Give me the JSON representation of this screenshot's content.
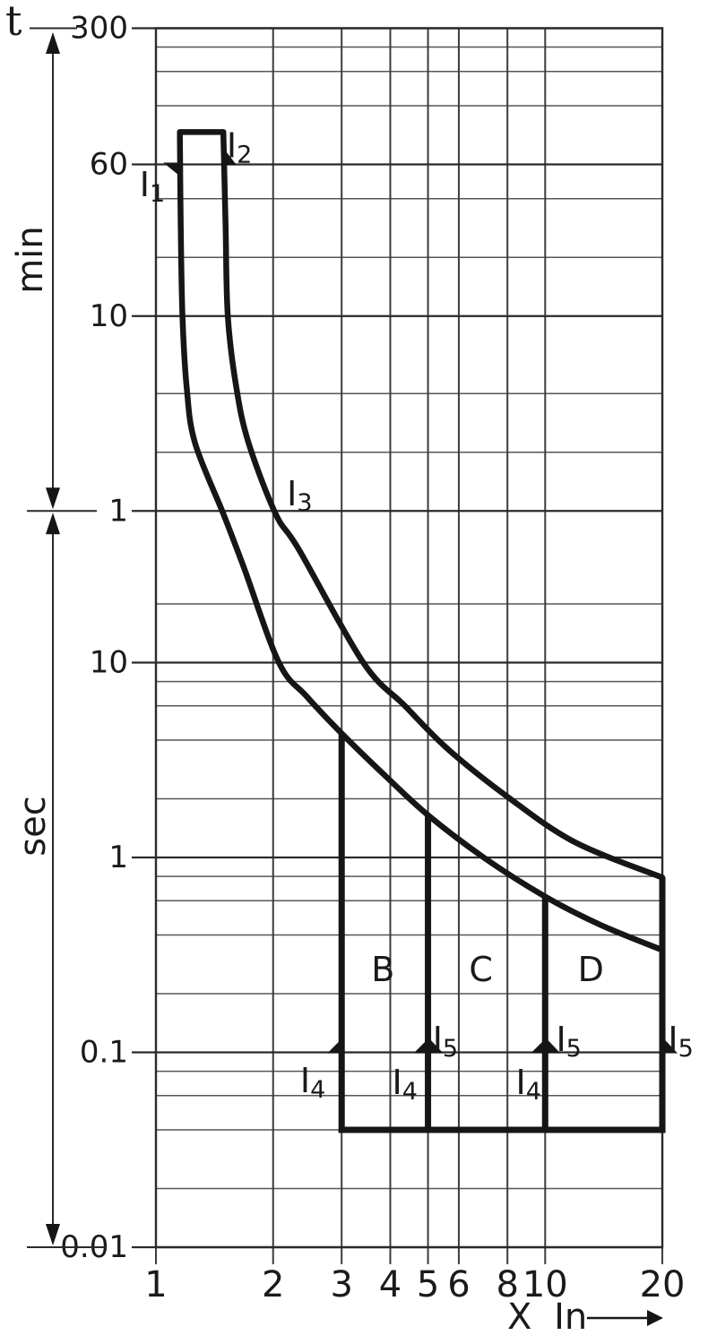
{
  "chart_data": {
    "type": "line",
    "x_axis": {
      "title": "X In",
      "scale": "log",
      "range": [
        1,
        20
      ],
      "ticks": [
        {
          "v": 1,
          "label": "1"
        },
        {
          "v": 2,
          "label": "2"
        },
        {
          "v": 3,
          "label": "3"
        },
        {
          "v": 4,
          "label": "4"
        },
        {
          "v": 5,
          "label": "5"
        },
        {
          "v": 6,
          "label": "6"
        },
        {
          "v": 8,
          "label": "8"
        },
        {
          "v": 10,
          "label": "10"
        },
        {
          "v": 20,
          "label": "20"
        }
      ]
    },
    "y_axis": {
      "title": "t",
      "unit_upper": "min",
      "unit_lower": "sec",
      "scale": "log",
      "range_s": [
        0.01,
        18000
      ],
      "ticks": [
        {
          "t_s": 18000,
          "label": "300"
        },
        {
          "t_s": 3600,
          "label": "60"
        },
        {
          "t_s": 600,
          "label": "10"
        },
        {
          "t_s": 60,
          "label": "1"
        },
        {
          "t_s": 10,
          "label": "10"
        },
        {
          "t_s": 1,
          "label": "1"
        },
        {
          "t_s": 0.1,
          "label": "0.1"
        },
        {
          "t_s": 0.01,
          "label": "0.01"
        }
      ],
      "minor_gridlines_s": [
        14400,
        10800,
        7200,
        2400,
        1200,
        240,
        120,
        20,
        8,
        6,
        4,
        2,
        0.8,
        0.6,
        0.4,
        0.2,
        0.08,
        0.06,
        0.04,
        0.02
      ]
    },
    "series": [
      {
        "name": "thermal-trip-lower-boundary",
        "points_v_t": [
          [
            1.152,
            5280
          ],
          [
            1.158,
            1730
          ],
          [
            1.17,
            597
          ],
          [
            1.2,
            256
          ],
          [
            1.26,
            134
          ],
          [
            1.49,
            58
          ],
          [
            1.68,
            31
          ],
          [
            2.07,
            10
          ],
          [
            2.44,
            6.7
          ],
          [
            3.0,
            4.33
          ],
          [
            3.95,
            2.54
          ],
          [
            5.0,
            1.65
          ],
          [
            6.95,
            1.0
          ],
          [
            10.0,
            0.63
          ],
          [
            13.9,
            0.45
          ],
          [
            20.0,
            0.335
          ]
        ]
      },
      {
        "name": "thermal-trip-upper-boundary",
        "points_v_t": [
          [
            1.49,
            5280
          ],
          [
            1.51,
            1730
          ],
          [
            1.53,
            597
          ],
          [
            1.61,
            256
          ],
          [
            1.73,
            134
          ],
          [
            2.03,
            58
          ],
          [
            2.33,
            38
          ],
          [
            3.41,
            10
          ],
          [
            4.36,
            6.0
          ],
          [
            5.64,
            3.58
          ],
          [
            8.0,
            2.05
          ],
          [
            11.9,
            1.2
          ],
          [
            20.0,
            0.789
          ]
        ]
      }
    ],
    "magnetic_trip": {
      "cap": {
        "t_s": 5280,
        "v_from": 1.152,
        "v_to": 1.49
      },
      "floor": {
        "t_s": 0.04,
        "v_from": 3,
        "v_to": 20
      },
      "verticals": [
        {
          "v": 3,
          "t_top_s": 4.33
        },
        {
          "v": 5,
          "t_top_s": 1.65
        },
        {
          "v": 10,
          "t_top_s": 0.63
        },
        {
          "v": 20,
          "t_top_s": 0.789
        }
      ]
    },
    "region_labels": [
      {
        "text": "B",
        "v": 3.83,
        "t_s": 0.266
      },
      {
        "text": "C",
        "v": 6.84,
        "t_s": 0.266
      },
      {
        "text": "D",
        "v": 13.1,
        "t_s": 0.266
      }
    ],
    "markers": [
      {
        "base": "I",
        "sub": "1",
        "v": 0.979,
        "t_s": 2840,
        "wedge": "cap-left"
      },
      {
        "base": "I",
        "sub": "2",
        "v": 1.638,
        "t_s": 4490,
        "wedge": "cap-right"
      },
      {
        "base": "I",
        "sub": "3",
        "v": 2.34,
        "t_s": 73.6,
        "wedge": "none"
      },
      {
        "base": "I",
        "sub": "4",
        "v": 2.53,
        "t_s": 0.0718,
        "wedge": "left-of-3"
      },
      {
        "base": "I",
        "sub": "4",
        "v": 4.36,
        "t_s": 0.0703,
        "wedge": "left-of-5"
      },
      {
        "base": "I",
        "sub": "4",
        "v": 9.06,
        "t_s": 0.0703,
        "wedge": "left-of-10"
      },
      {
        "base": "I",
        "sub": "5",
        "v": 5.54,
        "t_s": 0.1165,
        "wedge": "right-of-5"
      },
      {
        "base": "I",
        "sub": "5",
        "v": 11.5,
        "t_s": 0.1165,
        "wedge": "right-of-10"
      },
      {
        "base": "I",
        "sub": "5",
        "v": 22.3,
        "t_s": 0.1165,
        "wedge": "right-of-20"
      }
    ]
  }
}
